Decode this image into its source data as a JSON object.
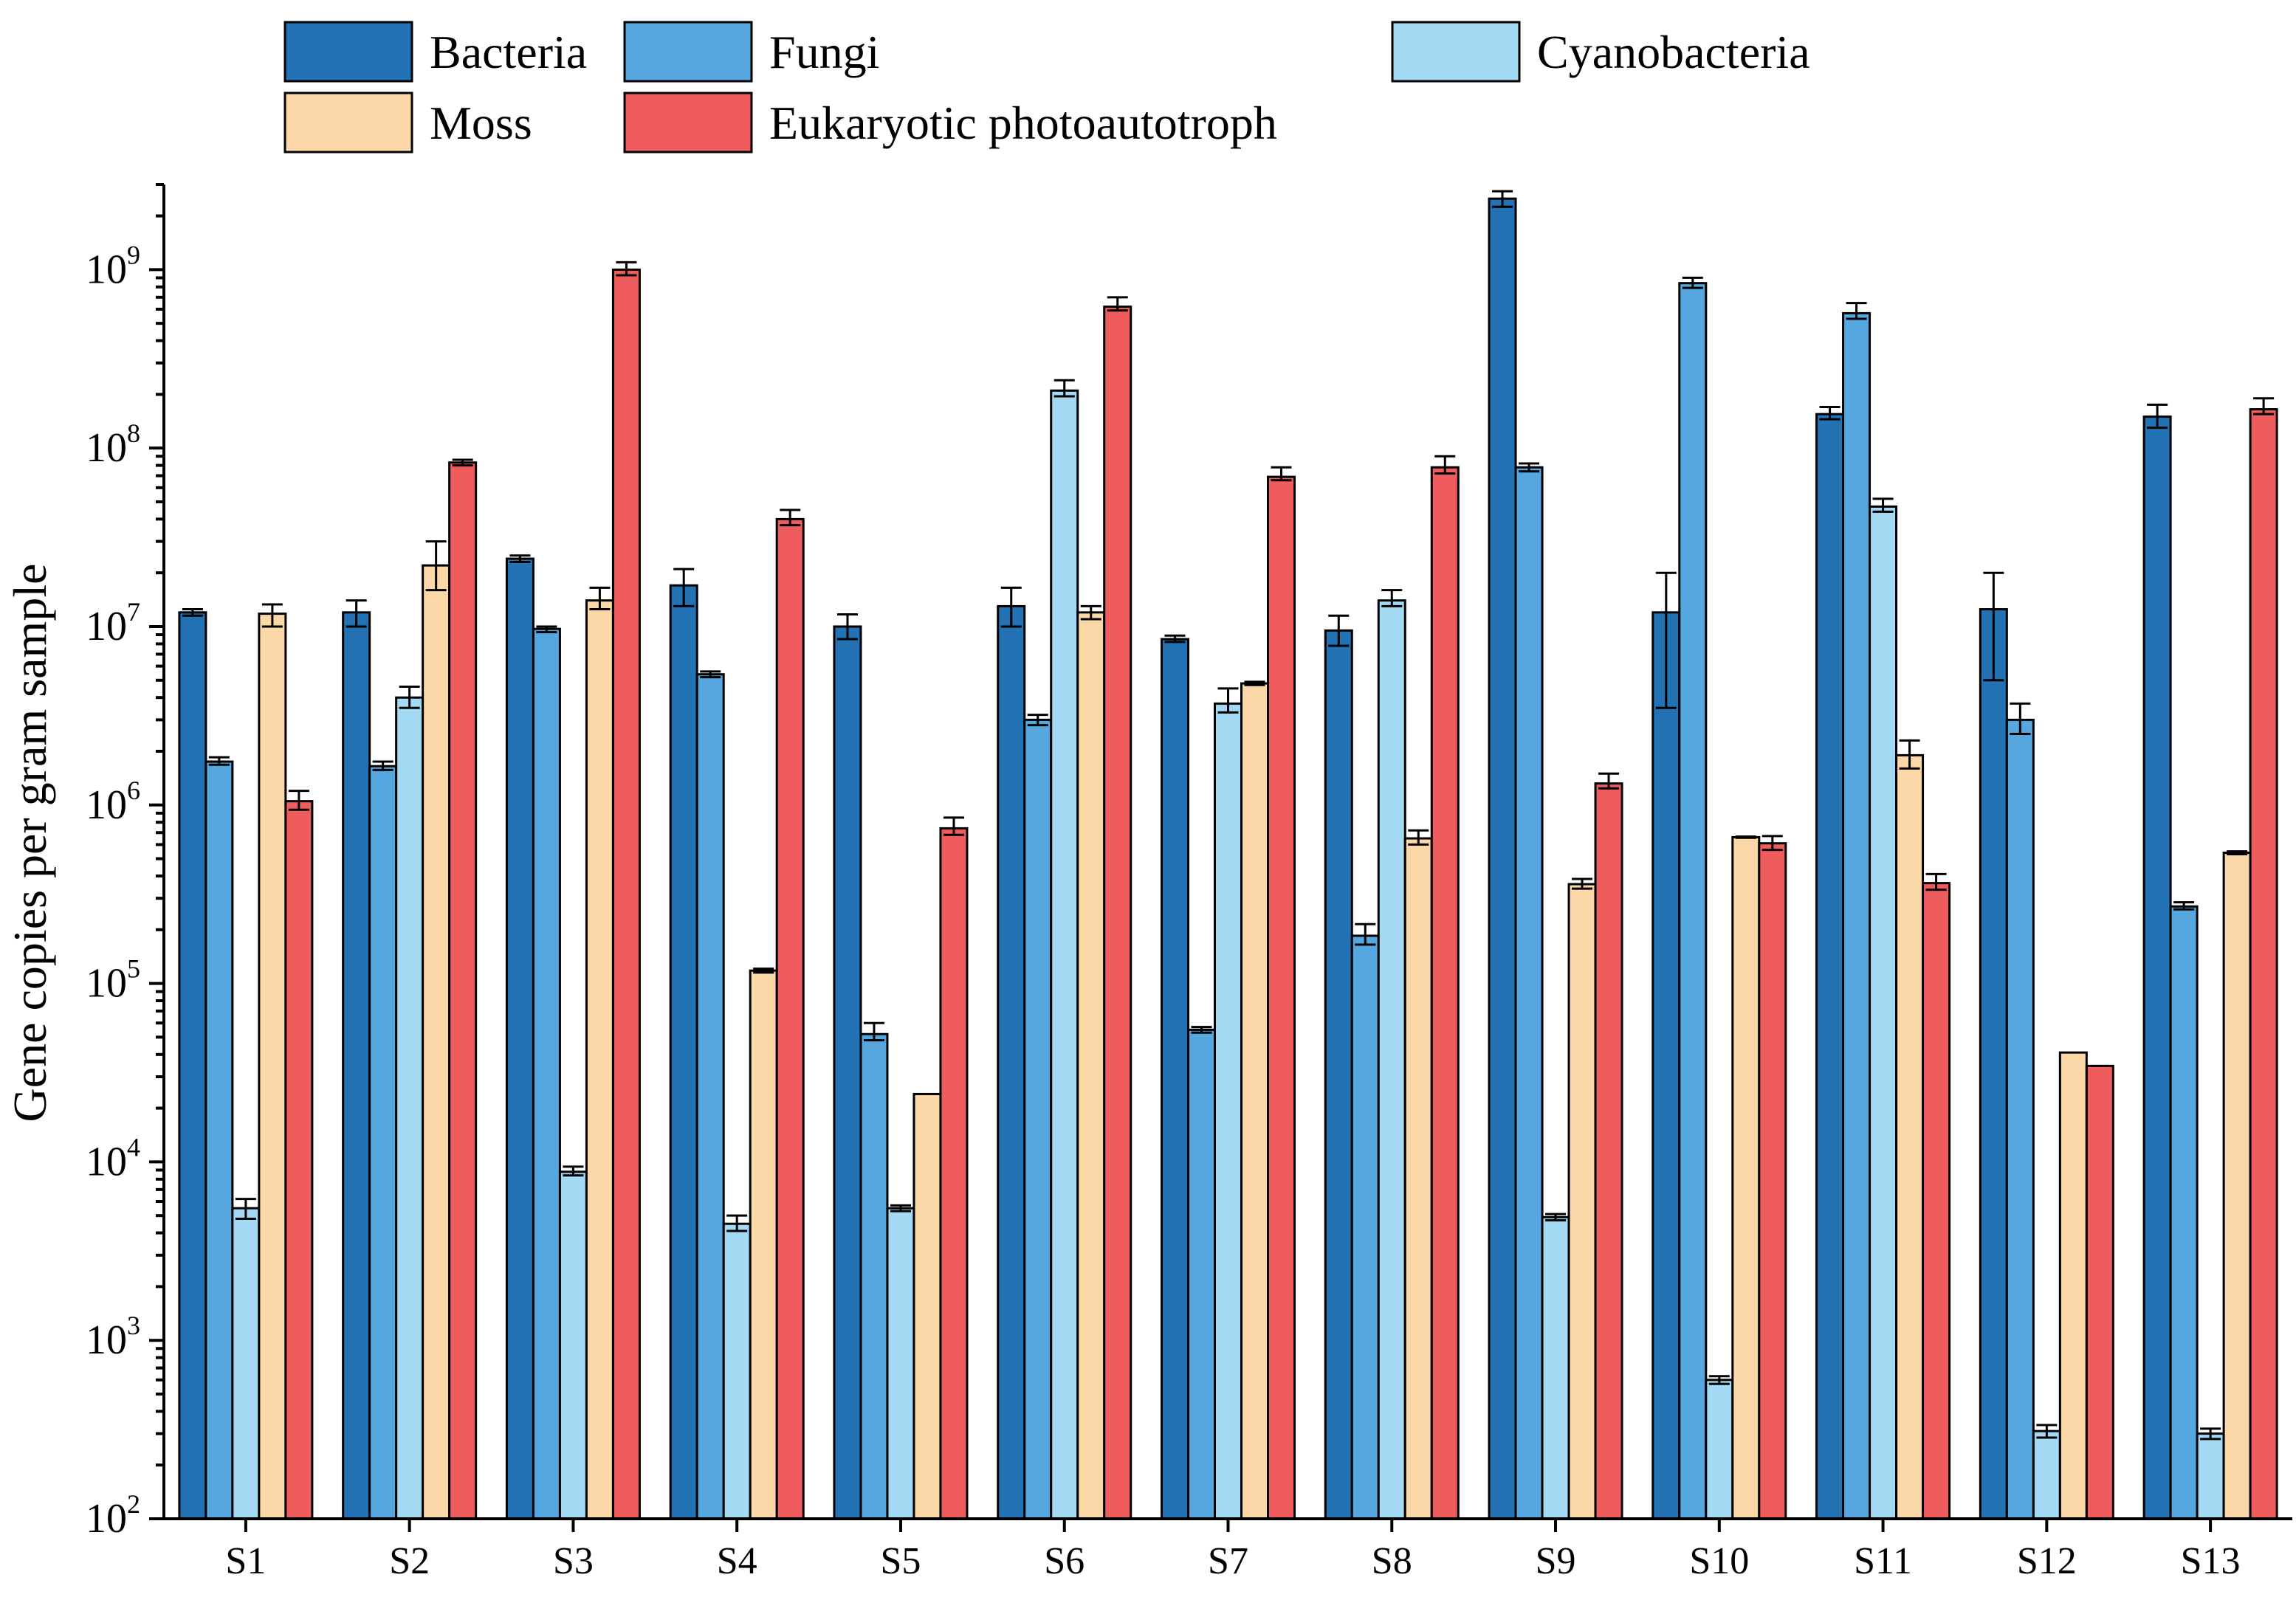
{
  "chart_data": {
    "type": "bar",
    "scale": "log",
    "ylabel": "Gene copies per gram sample",
    "xlabel": "",
    "ylim": [
      100,
      3000000000
    ],
    "yticks": [
      {
        "base": "10",
        "exp": "2",
        "value": 100
      },
      {
        "base": "10",
        "exp": "3",
        "value": 1000
      },
      {
        "base": "10",
        "exp": "4",
        "value": 10000
      },
      {
        "base": "10",
        "exp": "5",
        "value": 100000
      },
      {
        "base": "10",
        "exp": "6",
        "value": 1000000
      },
      {
        "base": "10",
        "exp": "7",
        "value": 10000000
      },
      {
        "base": "10",
        "exp": "8",
        "value": 100000000
      },
      {
        "base": "10",
        "exp": "9",
        "value": 1000000000
      }
    ],
    "categories": [
      "S1",
      "S2",
      "S3",
      "S4",
      "S5",
      "S6",
      "S7",
      "S8",
      "S9",
      "S10",
      "S11",
      "S12",
      "S13"
    ],
    "series": [
      {
        "name": "Bacteria",
        "color": "#2272b4",
        "values": [
          12000000,
          12000000,
          24000000,
          17000000,
          10000000,
          13000000,
          8500000,
          9500000,
          2500000000,
          12000000,
          155000000,
          12500000,
          150000000
        ],
        "err_low": [
          11500000,
          10000000,
          23000000,
          13000000,
          8500000,
          10000000,
          8200000,
          7800000,
          2250000000,
          3500000,
          145000000,
          5000000,
          130000000
        ],
        "err_high": [
          12500000,
          14000000,
          25000000,
          21000000,
          11700000,
          16500000,
          8900000,
          11500000,
          2750000000,
          20000000,
          170000000,
          20000000,
          175000000
        ]
      },
      {
        "name": "Fungi",
        "color": "#56a7e0",
        "values": [
          1750000,
          1650000,
          9700000,
          5400000,
          52000,
          3000000,
          55000,
          185000,
          78000000,
          840000000,
          570000000,
          3000000,
          270000
        ],
        "err_low": [
          1680000,
          1570000,
          9300000,
          5200000,
          48000,
          2800000,
          53000,
          165000,
          74000000,
          790000000,
          530000000,
          2500000,
          260000
        ],
        "err_high": [
          1850000,
          1750000,
          10000000,
          5600000,
          60000,
          3200000,
          57000,
          215000,
          82000000,
          900000000,
          650000000,
          3700000,
          285000
        ]
      },
      {
        "name": "Cyanobacteria",
        "color": "#a3d9f3",
        "values": [
          5500,
          4000000,
          8800,
          4500,
          5500,
          210000000,
          3700000,
          14000000,
          4900,
          600,
          47000000,
          310,
          300
        ],
        "err_low": [
          4800,
          3500000,
          8400,
          4100,
          5300,
          195000000,
          3300000,
          13000000,
          4700,
          570,
          44000000,
          285,
          280
        ],
        "err_high": [
          6200,
          4600000,
          9400,
          5000,
          5700,
          240000000,
          4500000,
          16000000,
          5100,
          630,
          52000000,
          335,
          320
        ]
      },
      {
        "name": "Moss",
        "color": "#fcd8a8",
        "values": [
          11800000,
          22000000,
          14000000,
          118000,
          24000,
          12000000,
          4800000,
          650000,
          360000,
          660000,
          1900000,
          41000,
          540000
        ],
        "err_low": [
          10000000,
          16000000,
          12500000,
          115000,
          24000,
          11000000,
          4700000,
          600000,
          340000,
          655000,
          1600000,
          41000,
          530000
        ],
        "err_high": [
          13300000,
          30000000,
          16500000,
          121000,
          24000,
          13000000,
          4900000,
          720000,
          385000,
          665000,
          2300000,
          41000,
          550000
        ]
      },
      {
        "name": "Eukaryotic photoautotroph",
        "color": "#ef5c5d",
        "values": [
          1050000,
          83000000,
          1000000000,
          40000000,
          740000,
          620000000,
          69000000,
          78000000,
          1320000,
          610000,
          365000,
          34500,
          165000000
        ],
        "err_low": [
          940000,
          80000000,
          930000000,
          37000000,
          680000,
          590000000,
          66000000,
          72000000,
          1240000,
          560000,
          335000,
          34500,
          155000000
        ],
        "err_high": [
          1200000,
          86000000,
          1100000000,
          45000000,
          850000,
          700000000,
          78000000,
          90000000,
          1500000,
          670000,
          410000,
          34500,
          190000000
        ]
      }
    ],
    "legend": {
      "position": "top",
      "columns": 3
    }
  }
}
